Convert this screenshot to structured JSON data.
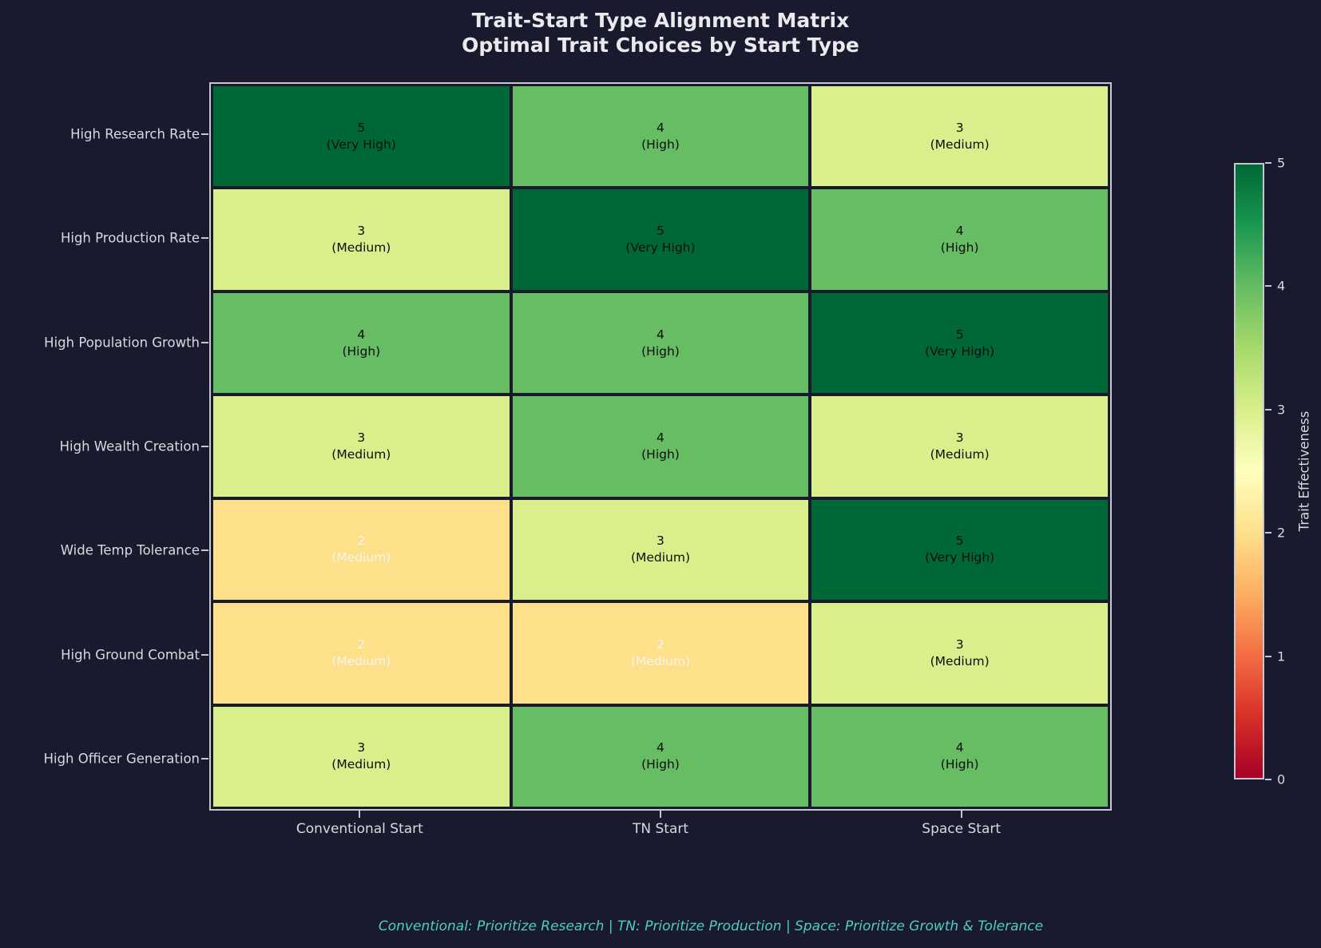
{
  "title": {
    "line1": "Trait-Start Type Alignment Matrix",
    "line2": "Optimal Trait Choices by Start Type"
  },
  "footer_note": "Conventional: Prioritize Research | TN: Prioritize Production | Space: Prioritize Growth & Tolerance",
  "colors": {
    "background": "#1a1a2e",
    "title_text": "#eaeaec",
    "axis_text": "#d9d9de",
    "spine": "#c6c6ce",
    "footer_text": "#4ecdc4",
    "cell_text_dark": "#0d0d0d",
    "cell_text_light": "#f5f5f0"
  },
  "chart_data": {
    "type": "heatmap",
    "rows": [
      "High Research Rate",
      "High Production Rate",
      "High Population Growth",
      "High Wealth Creation",
      "Wide Temp Tolerance",
      "High Ground Combat",
      "High Officer Generation"
    ],
    "columns": [
      "Conventional Start",
      "TN Start",
      "Space Start"
    ],
    "values": [
      [
        5,
        4,
        3
      ],
      [
        3,
        5,
        4
      ],
      [
        4,
        4,
        5
      ],
      [
        3,
        4,
        3
      ],
      [
        2,
        3,
        5
      ],
      [
        2,
        2,
        3
      ],
      [
        3,
        4,
        4
      ]
    ],
    "cell_qualifiers": [
      [
        "(Very High)",
        "(High)",
        "(Medium)"
      ],
      [
        "(Medium)",
        "(Very High)",
        "(High)"
      ],
      [
        "(High)",
        "(High)",
        "(Very High)"
      ],
      [
        "(Medium)",
        "(High)",
        "(Medium)"
      ],
      [
        "(Medium)",
        "(Medium)",
        "(Very High)"
      ],
      [
        "(Medium)",
        "(Medium)",
        "(Medium)"
      ],
      [
        "(Medium)",
        "(High)",
        "(High)"
      ]
    ],
    "value_colors": {
      "2": "#fee08b",
      "3": "#d9ef8b",
      "4": "#66bd63",
      "5": "#006837"
    },
    "light_text_max_value": 2,
    "colorbar": {
      "label": "Trait Effectiveness",
      "min": 0,
      "max": 5,
      "ticks": [
        "0",
        "1",
        "2",
        "3",
        "4",
        "5"
      ],
      "colormap": "RdYlGn",
      "gradient_stops_bottom_to_top": [
        "#a50026",
        "#d73027",
        "#f46d43",
        "#fdae61",
        "#fee08b",
        "#ffffbf",
        "#d9ef8b",
        "#a6d96a",
        "#66bd63",
        "#1a9850",
        "#006837"
      ]
    },
    "grid": {
      "line_color": "#1a1a2e",
      "on": true
    },
    "legend_position": "right-colorbar"
  }
}
